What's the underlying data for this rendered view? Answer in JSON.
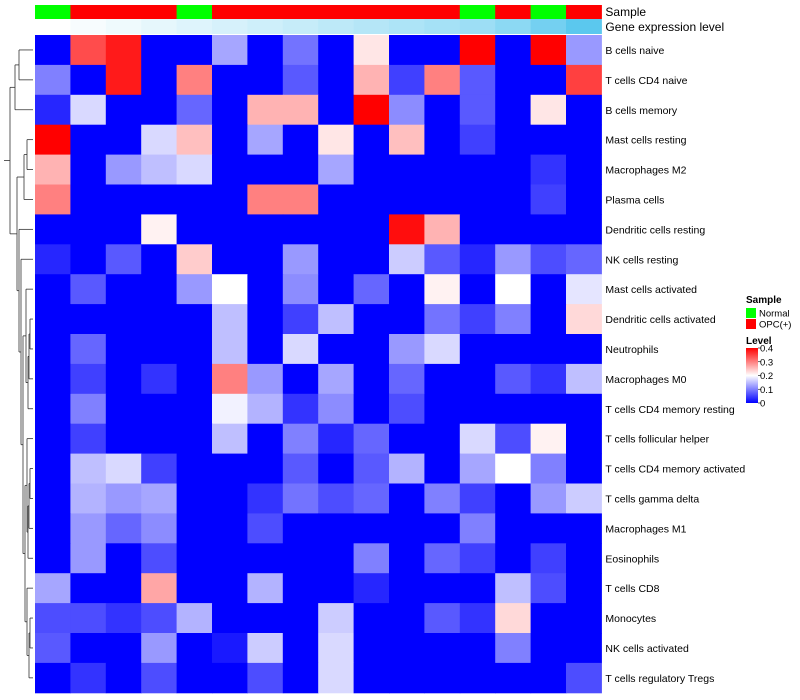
{
  "chart_data": {
    "type": "heatmap",
    "title": "",
    "annotation_labels": {
      "sample": "Sample",
      "expression": "Gene expression level"
    },
    "columns": [
      {
        "sample": "Normal"
      },
      {
        "sample": "OPC(+)"
      },
      {
        "sample": "OPC(+)"
      },
      {
        "sample": "OPC(+)"
      },
      {
        "sample": "Normal"
      },
      {
        "sample": "OPC(+)"
      },
      {
        "sample": "OPC(+)"
      },
      {
        "sample": "OPC(+)"
      },
      {
        "sample": "OPC(+)"
      },
      {
        "sample": "OPC(+)"
      },
      {
        "sample": "OPC(+)"
      },
      {
        "sample": "OPC(+)"
      },
      {
        "sample": "Normal"
      },
      {
        "sample": "OPC(+)"
      },
      {
        "sample": "Normal"
      },
      {
        "sample": "OPC(+)"
      }
    ],
    "gene_expression_gradient": [
      0.0,
      0.05,
      0.1,
      0.15,
      0.2,
      0.25,
      0.3,
      0.35,
      0.4,
      0.45,
      0.5,
      0.55,
      0.6,
      0.7,
      0.85,
      1.0
    ],
    "rows": [
      {
        "label": "B cells naive",
        "values": [
          0.0,
          0.34,
          0.38,
          0.0,
          0.0,
          0.13,
          0.0,
          0.09,
          0.0,
          0.22,
          0.0,
          0.0,
          0.4,
          0.0,
          0.4,
          0.12
        ]
      },
      {
        "label": "T cells CD4 naive",
        "values": [
          0.1,
          0.0,
          0.38,
          0.0,
          0.3,
          0.0,
          0.0,
          0.07,
          0.0,
          0.26,
          0.05,
          0.3,
          0.07,
          0.0,
          0.0,
          0.35
        ]
      },
      {
        "label": "B cells memory",
        "values": [
          0.03,
          0.17,
          0.0,
          0.0,
          0.08,
          0.0,
          0.26,
          0.26,
          0.0,
          0.4,
          0.11,
          0.0,
          0.07,
          0.0,
          0.22,
          0.0
        ]
      },
      {
        "label": "Mast cells resting",
        "values": [
          0.4,
          0.0,
          0.0,
          0.17,
          0.25,
          0.0,
          0.13,
          0.0,
          0.22,
          0.0,
          0.25,
          0.0,
          0.05,
          0.0,
          0.0,
          0.0
        ]
      },
      {
        "label": "Macrophages M2",
        "values": [
          0.26,
          0.0,
          0.12,
          0.15,
          0.17,
          0.0,
          0.0,
          0.0,
          0.13,
          0.0,
          0.0,
          0.0,
          0.0,
          0.0,
          0.04,
          0.0
        ]
      },
      {
        "label": "Plasma cells",
        "values": [
          0.3,
          0.0,
          0.0,
          0.0,
          0.0,
          0.0,
          0.3,
          0.3,
          0.0,
          0.0,
          0.0,
          0.0,
          0.0,
          0.0,
          0.05,
          0.0
        ]
      },
      {
        "label": "Dendritic cells resting",
        "values": [
          0.0,
          0.0,
          0.0,
          0.21,
          0.0,
          0.0,
          0.0,
          0.0,
          0.0,
          0.0,
          0.39,
          0.26,
          0.0,
          0.0,
          0.0,
          0.0
        ]
      },
      {
        "label": "NK cells resting",
        "values": [
          0.03,
          0.0,
          0.07,
          0.0,
          0.24,
          0.0,
          0.0,
          0.12,
          0.0,
          0.0,
          0.16,
          0.07,
          0.03,
          0.12,
          0.06,
          0.08
        ]
      },
      {
        "label": "Mast cells activated",
        "values": [
          0.0,
          0.07,
          0.0,
          0.0,
          0.12,
          0.2,
          0.0,
          0.11,
          0.0,
          0.08,
          0.0,
          0.21,
          0.0,
          0.2,
          0.0,
          0.18
        ]
      },
      {
        "label": "Dendritic cells activated",
        "values": [
          0.0,
          0.0,
          0.0,
          0.0,
          0.0,
          0.15,
          0.0,
          0.05,
          0.15,
          0.0,
          0.0,
          0.09,
          0.05,
          0.1,
          0.0,
          0.23
        ]
      },
      {
        "label": "Neutrophils",
        "values": [
          0.0,
          0.08,
          0.0,
          0.0,
          0.0,
          0.15,
          0.0,
          0.17,
          0.0,
          0.0,
          0.12,
          0.17,
          0.0,
          0.0,
          0.0,
          0.0
        ]
      },
      {
        "label": "Macrophages M0",
        "values": [
          0.0,
          0.05,
          0.0,
          0.04,
          0.0,
          0.3,
          0.12,
          0.0,
          0.13,
          0.0,
          0.08,
          0.0,
          0.0,
          0.07,
          0.04,
          0.15
        ]
      },
      {
        "label": "T cells CD4 memory resting",
        "values": [
          0.0,
          0.1,
          0.0,
          0.0,
          0.0,
          0.19,
          0.14,
          0.04,
          0.11,
          0.0,
          0.06,
          0.0,
          0.0,
          0.0,
          0.0,
          0.0
        ]
      },
      {
        "label": "T cells follicular helper",
        "values": [
          0.0,
          0.05,
          0.0,
          0.0,
          0.0,
          0.15,
          0.0,
          0.1,
          0.03,
          0.08,
          0.0,
          0.0,
          0.17,
          0.06,
          0.21,
          0.0
        ]
      },
      {
        "label": "T cells CD4 memory activated",
        "values": [
          0.0,
          0.15,
          0.17,
          0.05,
          0.0,
          0.0,
          0.0,
          0.07,
          0.0,
          0.07,
          0.14,
          0.0,
          0.13,
          0.2,
          0.1,
          0.0
        ]
      },
      {
        "label": "T cells gamma delta",
        "values": [
          0.0,
          0.14,
          0.12,
          0.13,
          0.0,
          0.0,
          0.04,
          0.09,
          0.06,
          0.08,
          0.0,
          0.1,
          0.05,
          0.0,
          0.12,
          0.16
        ]
      },
      {
        "label": "Macrophages M1",
        "values": [
          0.0,
          0.12,
          0.08,
          0.11,
          0.0,
          0.0,
          0.06,
          0.0,
          0.0,
          0.0,
          0.0,
          0.0,
          0.1,
          0.0,
          0.0,
          0.0
        ]
      },
      {
        "label": "Eosinophils",
        "values": [
          0.0,
          0.12,
          0.0,
          0.06,
          0.0,
          0.0,
          0.0,
          0.0,
          0.0,
          0.1,
          0.0,
          0.08,
          0.05,
          0.0,
          0.05,
          0.0
        ]
      },
      {
        "label": "T cells CD8",
        "values": [
          0.13,
          0.0,
          0.0,
          0.27,
          0.0,
          0.0,
          0.14,
          0.0,
          0.0,
          0.03,
          0.0,
          0.0,
          0.0,
          0.15,
          0.06,
          0.0
        ]
      },
      {
        "label": "Monocytes",
        "values": [
          0.06,
          0.06,
          0.04,
          0.06,
          0.14,
          0.0,
          0.0,
          0.0,
          0.16,
          0.0,
          0.0,
          0.07,
          0.04,
          0.23,
          0.0,
          0.0
        ]
      },
      {
        "label": "NK cells activated",
        "values": [
          0.07,
          0.0,
          0.0,
          0.12,
          0.0,
          0.02,
          0.16,
          0.0,
          0.17,
          0.0,
          0.0,
          0.0,
          0.0,
          0.1,
          0.0,
          0.0
        ]
      },
      {
        "label": "T cells regulatory  Tregs",
        "values": [
          0.0,
          0.04,
          0.0,
          0.06,
          0.0,
          0.0,
          0.06,
          0.0,
          0.17,
          0.0,
          0.0,
          0.0,
          0.0,
          0.0,
          0.0,
          0.06
        ]
      }
    ],
    "dendrogram_leaf_order": [
      "B cells naive",
      "T cells CD4 naive",
      "B cells memory",
      "Mast cells resting",
      "Macrophages M2",
      "Plasma cells",
      "Dendritic cells resting",
      "NK cells resting",
      "Mast cells activated",
      "Dendritic cells activated",
      "Neutrophils",
      "Macrophages M0",
      "T cells CD4 memory resting",
      "T cells follicular helper",
      "T cells CD4 memory activated",
      "T cells gamma delta",
      "Macrophages M1",
      "Eosinophils",
      "T cells CD8",
      "Monocytes",
      "NK cells activated",
      "T cells regulatory  Tregs"
    ],
    "color_scale": {
      "min": 0,
      "mid": 0.2,
      "max": 0.4,
      "low_color": "#0000ff",
      "mid_color": "#ffffff",
      "high_color": "#ff0000"
    },
    "legend": {
      "sample_title": "Sample",
      "sample_entries": [
        {
          "label": "Normal",
          "color": "#00ff00"
        },
        {
          "label": "OPC(+)",
          "color": "#ff0000"
        }
      ],
      "level_title": "Level",
      "level_ticks": [
        {
          "value": 0.4,
          "label": "0.4"
        },
        {
          "value": 0.3,
          "label": "0.3"
        },
        {
          "value": 0.2,
          "label": "0.2"
        },
        {
          "value": 0.1,
          "label": "0.1"
        },
        {
          "value": 0.0,
          "label": "0"
        }
      ]
    },
    "expression_colors": {
      "low": "#ffffff",
      "high": "#5bc8ee"
    }
  }
}
